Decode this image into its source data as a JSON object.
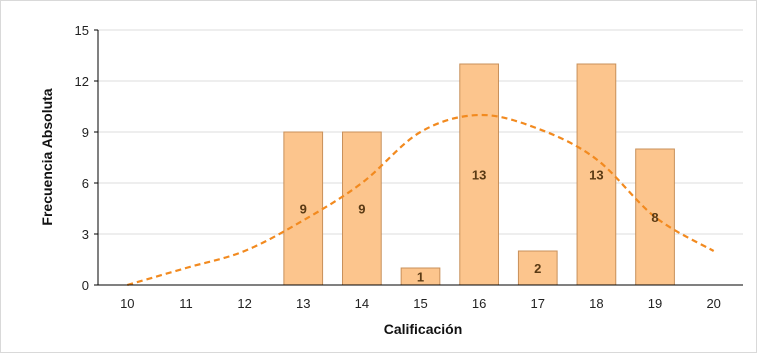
{
  "chart_data": {
    "type": "bar",
    "xlabel": "Calificación",
    "ylabel": "Frecuencia Absoluta",
    "categories": [
      "10",
      "11",
      "12",
      "13",
      "14",
      "15",
      "16",
      "17",
      "18",
      "19",
      "20"
    ],
    "values": [
      0,
      0,
      0,
      9,
      9,
      1,
      13,
      2,
      13,
      8,
      0
    ],
    "data_labels": [
      "",
      "",
      "",
      "9",
      "9",
      "1",
      "13",
      "2",
      "13",
      "8",
      ""
    ],
    "yticks": [
      "0",
      "3",
      "6",
      "9",
      "12",
      "15"
    ],
    "ylim": [
      0,
      15
    ],
    "grid": "horizontal",
    "trend_curve": {
      "style": "dashed",
      "x": [
        10,
        11,
        12,
        13,
        14,
        15,
        16,
        17,
        18,
        19,
        20
      ],
      "y": [
        0,
        1,
        2,
        3.8,
        6,
        9,
        10,
        9.2,
        7.4,
        4,
        2
      ]
    },
    "colors": {
      "bar_fill": "#fcc58d",
      "bar_stroke": "#c8905a",
      "curve": "#f28a1f",
      "grid": "#dcdcdc",
      "axis": "#000000"
    }
  }
}
